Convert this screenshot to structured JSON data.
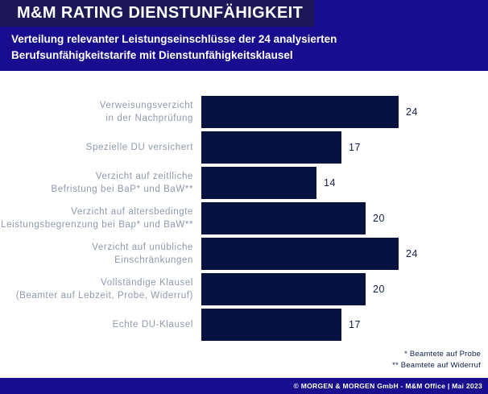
{
  "header": {
    "title": "M&M RATING DIENSTUNFÄHIGKEIT",
    "subtitle_line1": "Verteilung relevanter Leistungseinschlüsse der 24 analysierten",
    "subtitle_line2": "Berufsunfähigkeitstarife mit Dienstunfähigkeitsklausel"
  },
  "chart_data": {
    "type": "bar",
    "orientation": "horizontal",
    "title": "Verteilung relevanter Leistungseinschlüsse der 24 analysierten Berufsunfähigkeitstarife mit Dienstunfähigkeitsklausel",
    "categories": [
      "Verweisungsverzicht in der Nachprüfung",
      "Spezielle DU versichert",
      "Verzicht auf zeitlliche Befristung bei BaP* und BaW**",
      "Verzicht auf altersbedingte Leistungsbegrenzung bei Bap* und BaW**",
      "Verzicht auf unübliche Einschränkungen",
      "Vollständige Klausel (Beamter auf Lebzeit, Probe, Widerruf)",
      "Echte DU-Klausel"
    ],
    "category_lines": [
      [
        "Verweisungsverzicht",
        "in der Nachprüfung"
      ],
      [
        "Spezielle DU versichert"
      ],
      [
        "Verzicht auf zeitlliche",
        "Befristung bei BaP* und BaW**"
      ],
      [
        "Verzicht auf altersbedingte",
        "Leistungsbegrenzung bei Bap* und BaW**"
      ],
      [
        "Verzicht auf unübliche",
        "Einschränkungen"
      ],
      [
        "Vollständige Klausel",
        "(Beamter auf Lebzeit, Probe, Widerruf)"
      ],
      [
        "Echte DU-Klausel"
      ]
    ],
    "values": [
      24,
      17,
      14,
      20,
      24,
      20,
      17
    ],
    "xlim": [
      0,
      24
    ],
    "data_labels": true,
    "grid": false,
    "legend": false
  },
  "footnotes": [
    "* Beamtete auf Probe",
    "** Beamtete auf Widerruf"
  ],
  "footer": {
    "credit": "© MORGEN & MORGEN GmbH - M&M Office | Mai 2023"
  },
  "colors": {
    "brand_blue": "#180D8E",
    "title_box_navy": "#1D1757",
    "bar_navy": "#071240",
    "value_navy": "#101D4B",
    "label_gray": "#8E99AB"
  }
}
